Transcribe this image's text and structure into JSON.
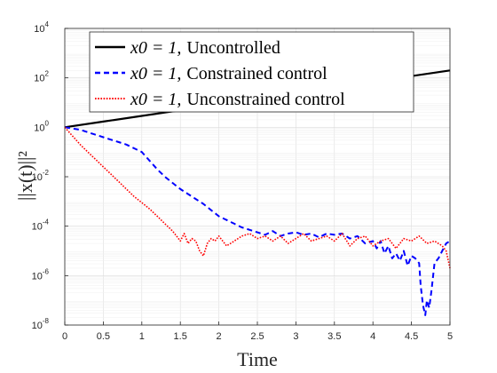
{
  "chart_data": {
    "type": "line",
    "title": "",
    "xlabel": "Time",
    "ylabel": "||x(t)||²",
    "xlim": [
      0,
      5
    ],
    "ylim_log10": [
      -8,
      4
    ],
    "yscale": "log",
    "grid": true,
    "legend_position": "top-left",
    "x_ticks": [
      "0",
      "0.5",
      "1",
      "1.5",
      "2",
      "2.5",
      "3",
      "3.5",
      "4",
      "4.5",
      "5"
    ],
    "y_ticks": [
      {
        "base": "10",
        "exp": "-8"
      },
      {
        "base": "10",
        "exp": "-6"
      },
      {
        "base": "10",
        "exp": "-4"
      },
      {
        "base": "10",
        "exp": "-2"
      },
      {
        "base": "10",
        "exp": "0"
      },
      {
        "base": "10",
        "exp": "2"
      },
      {
        "base": "10",
        "exp": "4"
      }
    ],
    "series": [
      {
        "name": "x0 = 1, Uncontrolled",
        "legend_math": "x0 = 1,",
        "legend_text": "Uncontrolled",
        "color": "#000000",
        "dash": "solid",
        "x": [
          0,
          0.5,
          1,
          1.5,
          2,
          2.5,
          3,
          3.5,
          4,
          4.5,
          5
        ],
        "log10_y": [
          0,
          0.23,
          0.46,
          0.69,
          0.92,
          1.15,
          1.38,
          1.61,
          1.84,
          2.07,
          2.3
        ]
      },
      {
        "name": "x0 = 1, Constrained control",
        "legend_math": "x0 = 1,",
        "legend_text": "Constrained control",
        "color": "#0000ff",
        "dash": "dashed",
        "x": [
          0,
          0.1,
          0.2,
          0.3,
          0.4,
          0.5,
          0.6,
          0.7,
          0.8,
          0.9,
          1.0,
          1.1,
          1.2,
          1.3,
          1.4,
          1.5,
          1.6,
          1.7,
          1.8,
          1.9,
          2.0,
          2.1,
          2.2,
          2.3,
          2.4,
          2.5,
          2.6,
          2.7,
          2.8,
          2.9,
          3.0,
          3.1,
          3.2,
          3.3,
          3.4,
          3.5,
          3.6,
          3.7,
          3.8,
          3.9,
          4.0,
          4.05,
          4.1,
          4.15,
          4.2,
          4.25,
          4.3,
          4.35,
          4.4,
          4.45,
          4.5,
          4.55,
          4.6,
          4.62,
          4.65,
          4.68,
          4.7,
          4.73,
          4.76,
          4.8,
          4.85,
          4.9,
          4.95,
          5.0
        ],
        "log10_y": [
          0,
          -0.05,
          -0.1,
          -0.2,
          -0.3,
          -0.4,
          -0.5,
          -0.6,
          -0.7,
          -0.85,
          -1.0,
          -1.35,
          -1.7,
          -2.0,
          -2.25,
          -2.5,
          -2.7,
          -2.9,
          -3.1,
          -3.35,
          -3.6,
          -3.75,
          -3.9,
          -4.05,
          -4.15,
          -4.25,
          -4.35,
          -4.2,
          -4.4,
          -4.3,
          -4.25,
          -4.35,
          -4.3,
          -4.45,
          -4.3,
          -4.35,
          -4.3,
          -4.5,
          -4.4,
          -4.7,
          -4.6,
          -4.9,
          -4.6,
          -5.1,
          -4.8,
          -5.3,
          -5.1,
          -5.4,
          -5.0,
          -5.6,
          -5.2,
          -5.3,
          -5.5,
          -6.4,
          -7.2,
          -7.6,
          -7.0,
          -7.3,
          -6.6,
          -5.5,
          -5.3,
          -5.0,
          -4.7,
          -4.6
        ]
      },
      {
        "name": "x0 = 1, Unconstrained control",
        "legend_math": "x0 = 1,",
        "legend_text": "Unconstrained control",
        "color": "#ff0000",
        "dash": "dotted",
        "x": [
          0,
          0.1,
          0.2,
          0.3,
          0.4,
          0.5,
          0.6,
          0.7,
          0.8,
          0.9,
          1.0,
          1.1,
          1.2,
          1.3,
          1.4,
          1.45,
          1.5,
          1.55,
          1.6,
          1.65,
          1.7,
          1.75,
          1.8,
          1.85,
          1.9,
          1.95,
          2.0,
          2.1,
          2.2,
          2.3,
          2.4,
          2.5,
          2.6,
          2.7,
          2.8,
          2.9,
          3.0,
          3.1,
          3.2,
          3.3,
          3.4,
          3.5,
          3.6,
          3.7,
          3.8,
          3.9,
          4.0,
          4.1,
          4.2,
          4.3,
          4.4,
          4.5,
          4.6,
          4.7,
          4.8,
          4.9,
          4.95,
          5.0
        ],
        "log10_y": [
          0,
          -0.35,
          -0.7,
          -1.0,
          -1.3,
          -1.6,
          -1.9,
          -2.2,
          -2.5,
          -2.8,
          -3.05,
          -3.3,
          -3.6,
          -3.9,
          -4.2,
          -4.4,
          -4.6,
          -4.3,
          -4.7,
          -4.5,
          -4.6,
          -5.0,
          -5.2,
          -4.7,
          -4.5,
          -4.6,
          -4.4,
          -4.8,
          -4.6,
          -4.4,
          -4.3,
          -4.5,
          -4.4,
          -4.6,
          -4.4,
          -4.7,
          -4.5,
          -4.3,
          -4.6,
          -4.5,
          -4.4,
          -4.6,
          -4.3,
          -4.8,
          -4.5,
          -4.4,
          -4.8,
          -4.6,
          -4.5,
          -4.9,
          -4.5,
          -4.6,
          -4.4,
          -4.7,
          -4.6,
          -4.8,
          -5.0,
          -5.7
        ]
      }
    ]
  }
}
